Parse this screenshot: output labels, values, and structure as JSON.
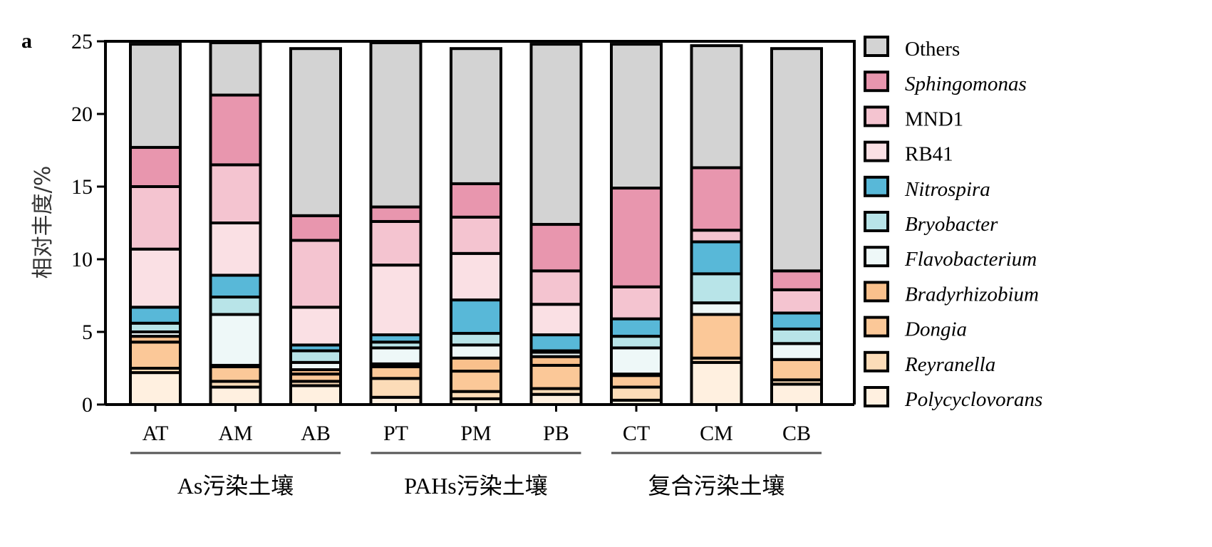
{
  "panel_label": "a",
  "chart_data": {
    "type": "bar",
    "stacked": true,
    "title": "",
    "xlabel": "",
    "ylabel": "相对丰度/%",
    "ylim": [
      0,
      25
    ],
    "yticks": [
      0,
      5,
      10,
      15,
      20,
      25
    ],
    "grid": false,
    "legend_position": "right",
    "categories": [
      "AT",
      "AM",
      "AB",
      "PT",
      "PM",
      "PB",
      "CT",
      "CM",
      "CB"
    ],
    "groups": [
      {
        "label": "As污染土壤",
        "categories": [
          "AT",
          "AM",
          "AB"
        ]
      },
      {
        "label": "PAHs污染土壤",
        "categories": [
          "PT",
          "PM",
          "PB"
        ]
      },
      {
        "label": "复合污染土壤",
        "categories": [
          "CT",
          "CM",
          "CB"
        ]
      }
    ],
    "series": [
      {
        "name": "Polycyclovorans",
        "italic": true,
        "color": "#fff0e0",
        "values": [
          2.2,
          1.2,
          1.3,
          0.5,
          0.4,
          0.7,
          0.3,
          2.9,
          1.4
        ]
      },
      {
        "name": "Reyranella",
        "italic": true,
        "color": "#fcdcb8",
        "values": [
          0.3,
          0.4,
          0.3,
          1.3,
          0.5,
          0.4,
          0.9,
          0.3,
          0.3
        ]
      },
      {
        "name": "Dongia",
        "italic": true,
        "color": "#fbc898",
        "values": [
          1.8,
          1.0,
          0.5,
          0.8,
          1.4,
          1.6,
          0.8,
          3.0,
          1.4
        ]
      },
      {
        "name": "Bradyrhizobium",
        "italic": true,
        "color": "#f9c08c",
        "values": [
          0.4,
          0.1,
          0.3,
          0.2,
          0.9,
          0.6,
          0.1,
          0.0,
          0.0
        ]
      },
      {
        "name": "Flavobacterium",
        "italic": true,
        "color": "#eef8f8",
        "values": [
          0.3,
          3.5,
          0.5,
          1.1,
          0.9,
          0.3,
          1.8,
          0.8,
          1.1
        ]
      },
      {
        "name": "Bryobacter",
        "italic": true,
        "color": "#b8e4e8",
        "values": [
          0.6,
          1.2,
          0.8,
          0.4,
          0.8,
          0.1,
          0.8,
          2.0,
          1.0
        ]
      },
      {
        "name": "Nitrospira",
        "italic": true,
        "color": "#58b8d8",
        "values": [
          1.1,
          1.5,
          0.4,
          0.5,
          2.3,
          1.1,
          1.2,
          2.2,
          1.1
        ]
      },
      {
        "name": "RB41",
        "italic": false,
        "color": "#fae0e4",
        "values": [
          4.0,
          3.6,
          2.6,
          4.8,
          3.2,
          2.1,
          0.0,
          0.0,
          0.0
        ]
      },
      {
        "name": "MND1",
        "italic": false,
        "color": "#f4c4d0",
        "values": [
          4.3,
          4.0,
          4.6,
          3.0,
          2.5,
          2.3,
          2.2,
          0.8,
          1.6
        ]
      },
      {
        "name": "Sphingomonas",
        "italic": true,
        "color": "#e896ae",
        "values": [
          2.7,
          4.8,
          1.7,
          1.0,
          2.3,
          3.2,
          6.8,
          4.3,
          1.3
        ]
      },
      {
        "name": "Others",
        "italic": false,
        "color": "#d3d3d3",
        "values": [
          7.1,
          3.6,
          11.5,
          11.3,
          9.3,
          12.4,
          9.9,
          8.4,
          15.3
        ]
      }
    ]
  }
}
